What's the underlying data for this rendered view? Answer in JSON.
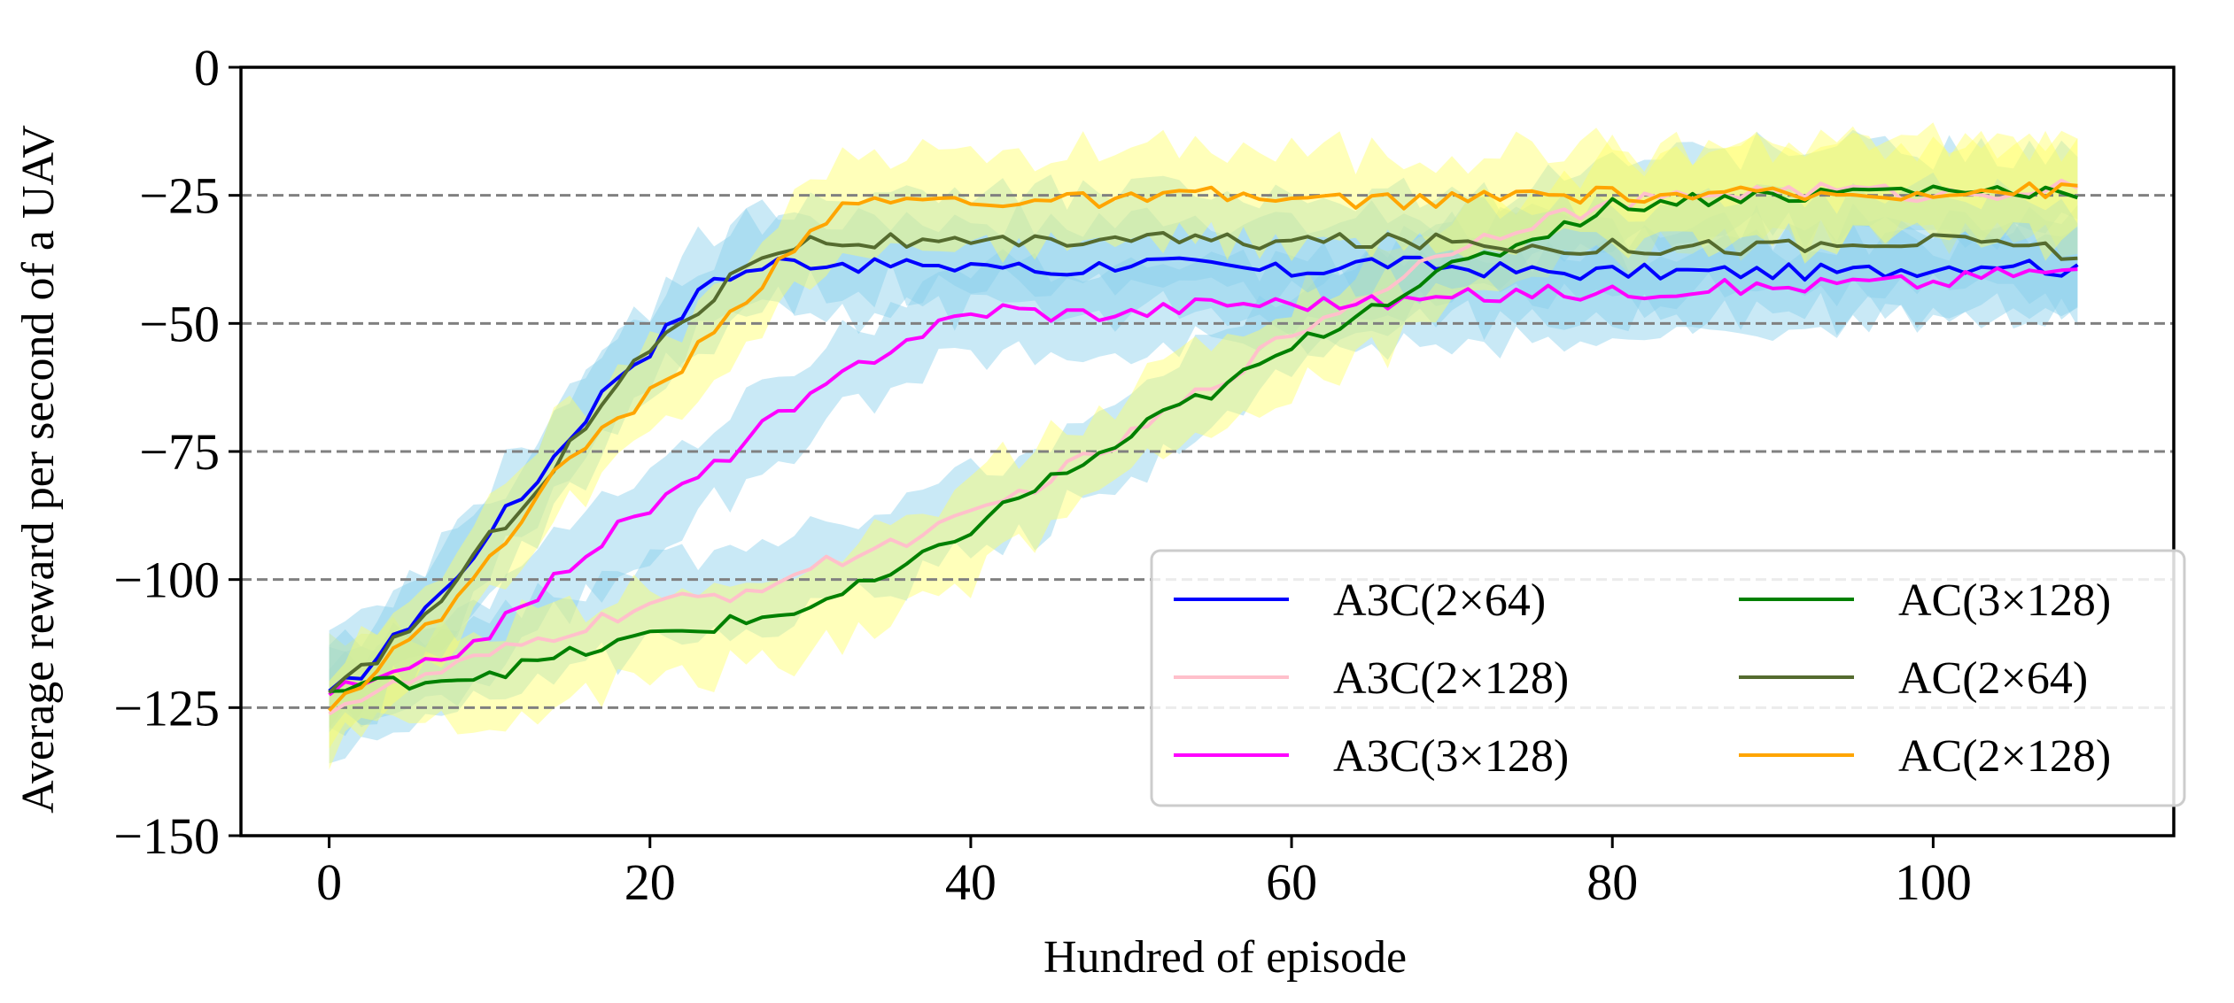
{
  "chart_data": {
    "type": "line",
    "title": "",
    "xlabel": "Hundred of episode",
    "ylabel": "Average reward per second of a UAV",
    "xlim": [
      -5.5,
      115
    ],
    "ylim": [
      -150,
      0
    ],
    "xticks": [
      0,
      20,
      40,
      60,
      80,
      100
    ],
    "yticks": [
      0,
      -25,
      -50,
      -75,
      -100,
      -125,
      -150
    ],
    "xtick_labels": [
      "0",
      "20",
      "40",
      "60",
      "80",
      "100"
    ],
    "ytick_labels": [
      "0",
      "−25",
      "−50",
      "−75",
      "−100",
      "−125",
      "−150"
    ],
    "hlines": [
      -25,
      -50,
      -75,
      -100,
      -125
    ],
    "legend_position": "lower-right",
    "series": [
      {
        "name": "A3C(2×64)",
        "color": "#0000ff",
        "band_color": "#87ceeb",
        "points": [
          [
            0,
            -123
          ],
          [
            2,
            -118
          ],
          [
            4,
            -112
          ],
          [
            6,
            -105
          ],
          [
            8,
            -100
          ],
          [
            10,
            -90
          ],
          [
            12,
            -84
          ],
          [
            14,
            -76
          ],
          [
            16,
            -68
          ],
          [
            18,
            -60
          ],
          [
            20,
            -55
          ],
          [
            22,
            -48
          ],
          [
            24,
            -41
          ],
          [
            26,
            -40
          ],
          [
            28,
            -38
          ],
          [
            30,
            -38
          ],
          [
            32,
            -38
          ],
          [
            34,
            -39
          ],
          [
            36,
            -38
          ],
          [
            38,
            -40
          ],
          [
            40,
            -38
          ],
          [
            45,
            -40
          ],
          [
            50,
            -38
          ],
          [
            55,
            -39
          ],
          [
            60,
            -40
          ],
          [
            65,
            -38
          ],
          [
            70,
            -39
          ],
          [
            75,
            -40
          ],
          [
            80,
            -40
          ],
          [
            85,
            -40
          ],
          [
            90,
            -40
          ],
          [
            95,
            -40
          ],
          [
            100,
            -39
          ],
          [
            105,
            -38
          ],
          [
            109,
            -40
          ]
        ],
        "spread": 9
      },
      {
        "name": "A3C(2×128)",
        "color": "#ffc0cb",
        "band_color": "#87ceeb",
        "points": [
          [
            0,
            -125
          ],
          [
            5,
            -120
          ],
          [
            10,
            -115
          ],
          [
            15,
            -110
          ],
          [
            20,
            -105
          ],
          [
            25,
            -103
          ],
          [
            30,
            -98
          ],
          [
            35,
            -93
          ],
          [
            40,
            -88
          ],
          [
            45,
            -80
          ],
          [
            50,
            -72
          ],
          [
            55,
            -62
          ],
          [
            60,
            -52
          ],
          [
            65,
            -44
          ],
          [
            70,
            -35
          ],
          [
            75,
            -30
          ],
          [
            80,
            -27
          ],
          [
            85,
            -25
          ],
          [
            90,
            -24
          ],
          [
            95,
            -24
          ],
          [
            100,
            -25
          ],
          [
            105,
            -24
          ],
          [
            109,
            -23
          ]
        ],
        "spread": 8
      },
      {
        "name": "A3C(3×128)",
        "color": "#ff00ff",
        "band_color": "#87ceeb",
        "points": [
          [
            0,
            -122
          ],
          [
            3,
            -120
          ],
          [
            6,
            -117
          ],
          [
            9,
            -112
          ],
          [
            12,
            -106
          ],
          [
            15,
            -97
          ],
          [
            18,
            -90
          ],
          [
            21,
            -84
          ],
          [
            24,
            -78
          ],
          [
            27,
            -70
          ],
          [
            30,
            -65
          ],
          [
            33,
            -58
          ],
          [
            36,
            -53
          ],
          [
            39,
            -49
          ],
          [
            42,
            -47
          ],
          [
            45,
            -48
          ],
          [
            50,
            -48
          ],
          [
            55,
            -46
          ],
          [
            60,
            -46
          ],
          [
            65,
            -46
          ],
          [
            70,
            -45
          ],
          [
            75,
            -44
          ],
          [
            80,
            -44
          ],
          [
            85,
            -43
          ],
          [
            90,
            -43
          ],
          [
            95,
            -42
          ],
          [
            100,
            -42
          ],
          [
            105,
            -40
          ],
          [
            109,
            -40
          ]
        ],
        "spread": 8
      },
      {
        "name": "AC(3×128)",
        "color": "#008000",
        "band_color": "#ffff66",
        "points": [
          [
            0,
            -122
          ],
          [
            4,
            -120
          ],
          [
            8,
            -119
          ],
          [
            12,
            -117
          ],
          [
            16,
            -114
          ],
          [
            20,
            -111
          ],
          [
            24,
            -109
          ],
          [
            28,
            -107
          ],
          [
            32,
            -103
          ],
          [
            36,
            -98
          ],
          [
            40,
            -90
          ],
          [
            44,
            -82
          ],
          [
            48,
            -76
          ],
          [
            52,
            -68
          ],
          [
            56,
            -62
          ],
          [
            60,
            -55
          ],
          [
            64,
            -48
          ],
          [
            68,
            -42
          ],
          [
            72,
            -37
          ],
          [
            76,
            -32
          ],
          [
            80,
            -27
          ],
          [
            84,
            -26
          ],
          [
            88,
            -25
          ],
          [
            92,
            -25
          ],
          [
            96,
            -24
          ],
          [
            100,
            -24
          ],
          [
            105,
            -24
          ],
          [
            109,
            -24
          ]
        ],
        "spread": 9
      },
      {
        "name": "AC(2×64)",
        "color": "#556b2f",
        "band_color": "#87ceeb",
        "points": [
          [
            0,
            -123
          ],
          [
            2,
            -118
          ],
          [
            4,
            -112
          ],
          [
            6,
            -107
          ],
          [
            8,
            -100
          ],
          [
            10,
            -92
          ],
          [
            12,
            -85
          ],
          [
            14,
            -78
          ],
          [
            16,
            -70
          ],
          [
            18,
            -62
          ],
          [
            20,
            -55
          ],
          [
            22,
            -49
          ],
          [
            24,
            -45
          ],
          [
            26,
            -38
          ],
          [
            28,
            -35
          ],
          [
            30,
            -34
          ],
          [
            35,
            -34
          ],
          [
            40,
            -35
          ],
          [
            45,
            -34
          ],
          [
            50,
            -33
          ],
          [
            55,
            -34
          ],
          [
            60,
            -34
          ],
          [
            65,
            -34
          ],
          [
            70,
            -34
          ],
          [
            75,
            -35
          ],
          [
            80,
            -35
          ],
          [
            85,
            -35
          ],
          [
            90,
            -35
          ],
          [
            95,
            -35
          ],
          [
            100,
            -34
          ],
          [
            105,
            -34
          ],
          [
            109,
            -37
          ]
        ],
        "spread": 9
      },
      {
        "name": "AC(2×128)",
        "color": "#ffa500",
        "band_color": "#ffff66",
        "points": [
          [
            0,
            -124
          ],
          [
            2,
            -120
          ],
          [
            4,
            -114
          ],
          [
            6,
            -110
          ],
          [
            8,
            -104
          ],
          [
            10,
            -95
          ],
          [
            12,
            -88
          ],
          [
            14,
            -80
          ],
          [
            16,
            -74
          ],
          [
            18,
            -68
          ],
          [
            20,
            -64
          ],
          [
            22,
            -58
          ],
          [
            24,
            -52
          ],
          [
            26,
            -45
          ],
          [
            28,
            -38
          ],
          [
            30,
            -31
          ],
          [
            32,
            -28
          ],
          [
            34,
            -26
          ],
          [
            38,
            -26
          ],
          [
            42,
            -26
          ],
          [
            46,
            -26
          ],
          [
            50,
            -26
          ],
          [
            55,
            -25
          ],
          [
            60,
            -26
          ],
          [
            65,
            -26
          ],
          [
            70,
            -26
          ],
          [
            75,
            -25
          ],
          [
            80,
            -25
          ],
          [
            85,
            -25
          ],
          [
            90,
            -25
          ],
          [
            95,
            -25
          ],
          [
            100,
            -24
          ],
          [
            105,
            -24
          ],
          [
            109,
            -24
          ]
        ],
        "spread": 9
      }
    ]
  }
}
